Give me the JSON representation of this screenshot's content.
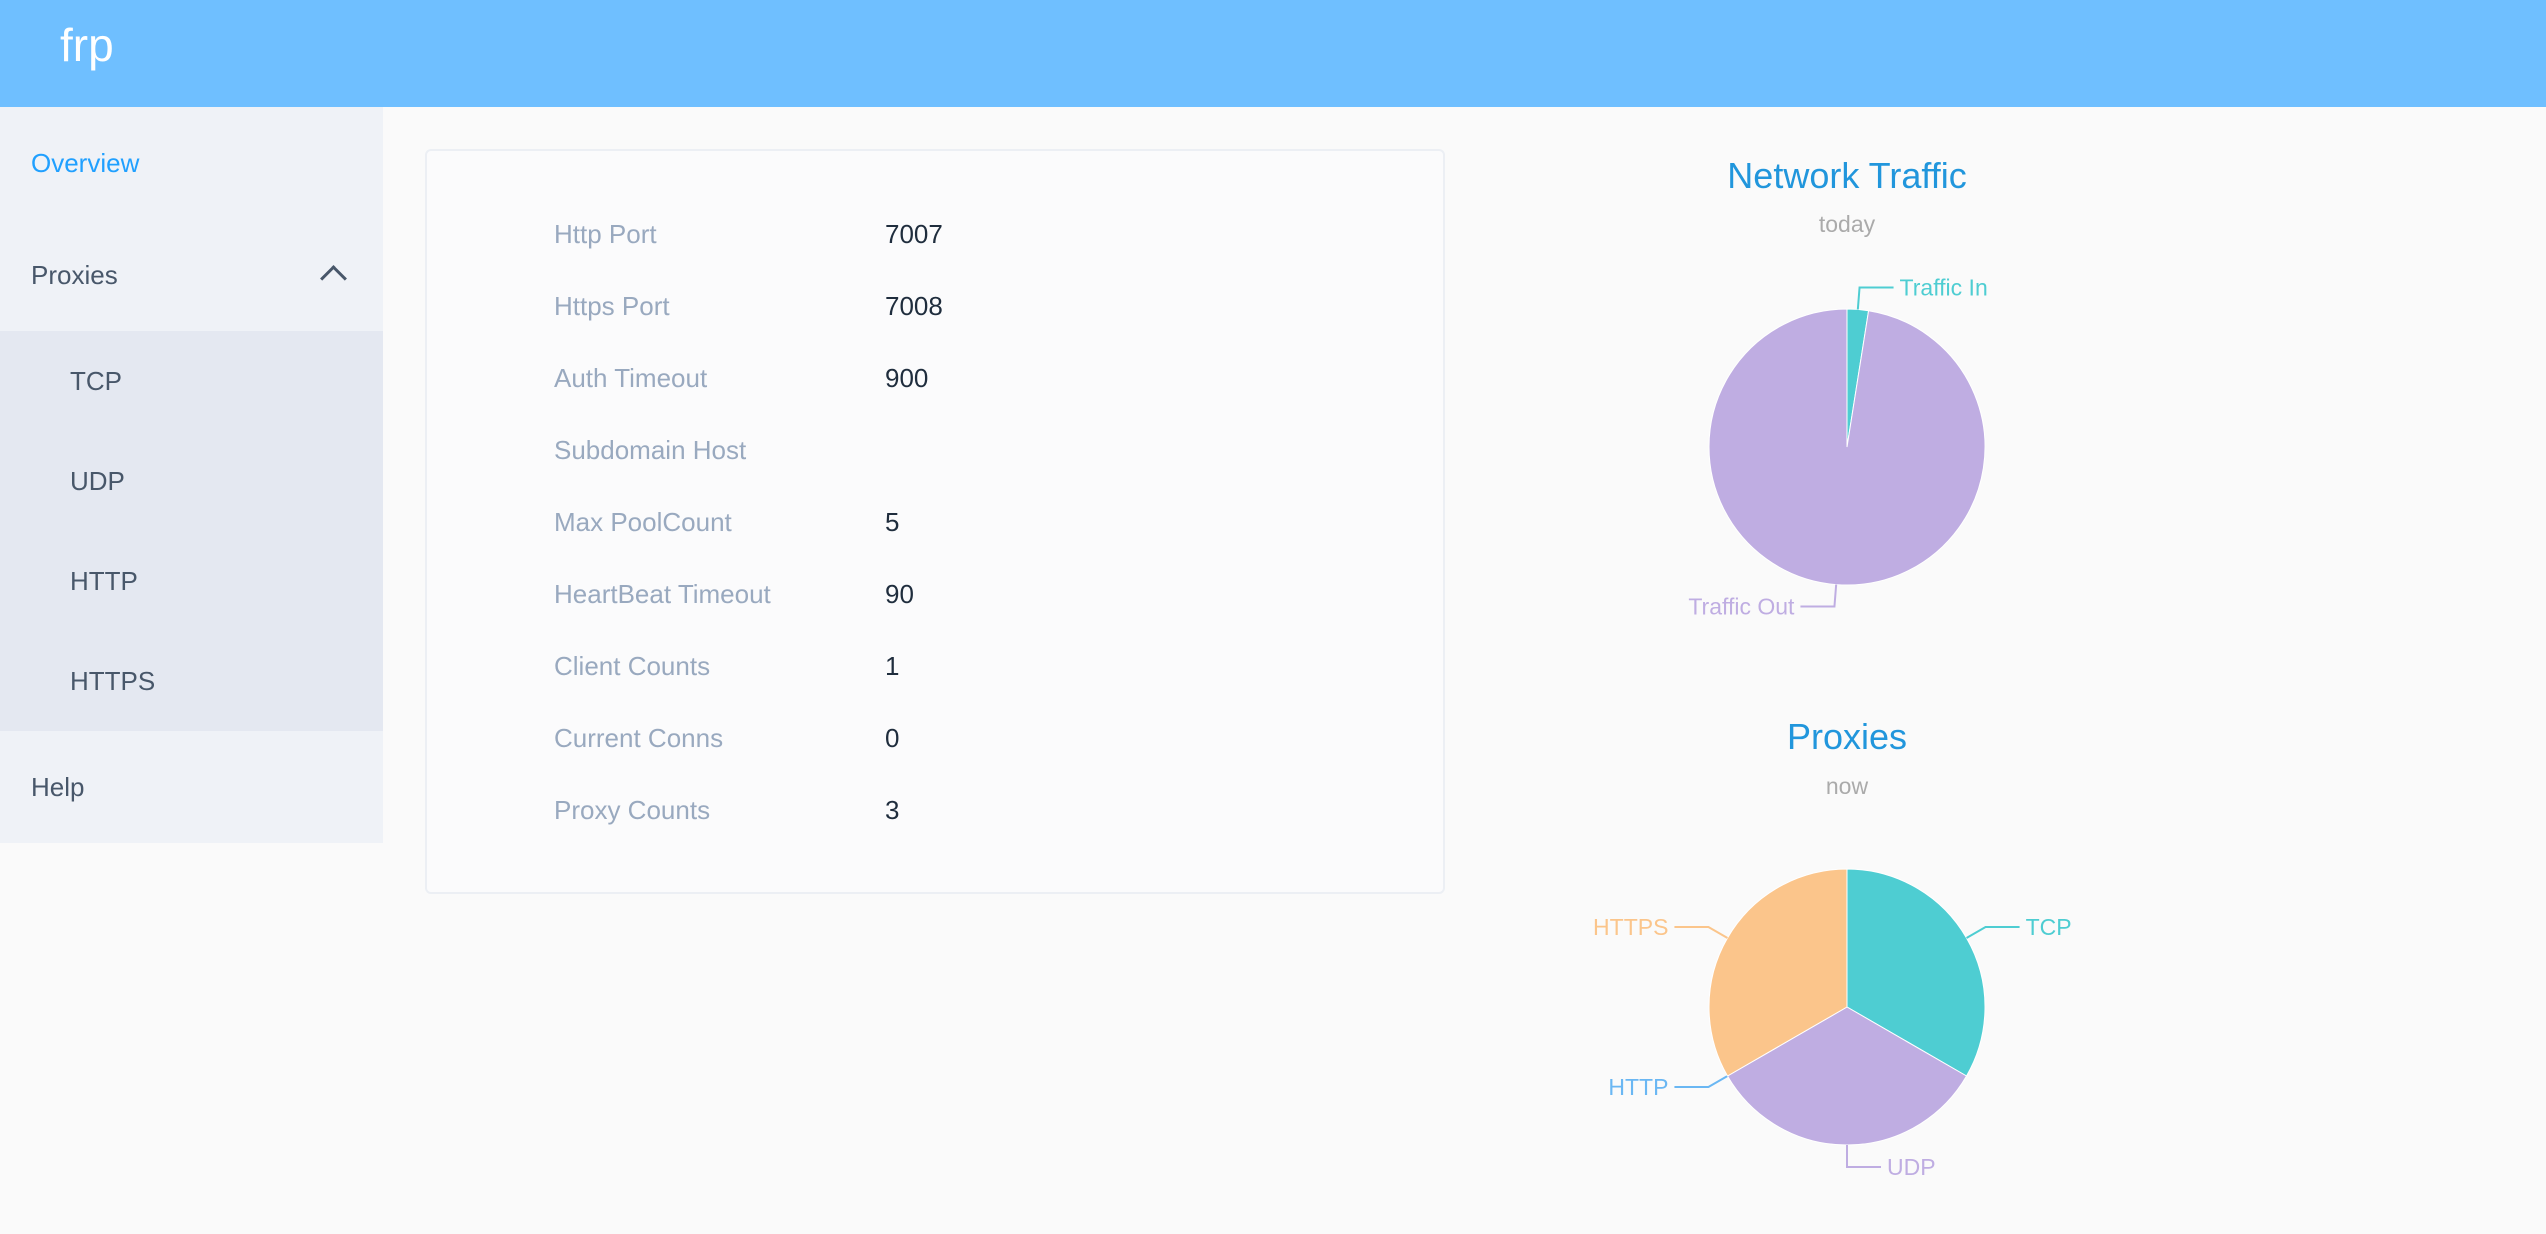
{
  "header": {
    "logo": "frp"
  },
  "sidebar": {
    "overview": "Overview",
    "proxies": "Proxies",
    "sub_items": [
      "TCP",
      "UDP",
      "HTTP",
      "HTTPS"
    ],
    "help": "Help"
  },
  "server_info": [
    {
      "label": "Http Port",
      "value": "7007"
    },
    {
      "label": "Https Port",
      "value": "7008"
    },
    {
      "label": "Auth Timeout",
      "value": "900"
    },
    {
      "label": "Subdomain Host",
      "value": ""
    },
    {
      "label": "Max PoolCount",
      "value": "5"
    },
    {
      "label": "HeartBeat Timeout",
      "value": "90"
    },
    {
      "label": "Client Counts",
      "value": "1"
    },
    {
      "label": "Current Conns",
      "value": "0"
    },
    {
      "label": "Proxy Counts",
      "value": "3"
    }
  ],
  "chart_data": [
    {
      "type": "pie",
      "title": "Network Traffic",
      "subtitle": "today",
      "slices": [
        {
          "name": "Traffic In",
          "value": 2.5,
          "color": "#4ecdd2"
        },
        {
          "name": "Traffic Out",
          "value": 97.5,
          "color": "#bfade2"
        }
      ]
    },
    {
      "type": "pie",
      "title": "Proxies",
      "subtitle": "now",
      "slices": [
        {
          "name": "TCP",
          "value": 1,
          "color": "#4ecdd2"
        },
        {
          "name": "UDP",
          "value": 1,
          "color": "#bfade2"
        },
        {
          "name": "HTTP",
          "value": 0,
          "color": "#6ab7f3"
        },
        {
          "name": "HTTPS",
          "value": 1,
          "color": "#fbc58b"
        }
      ]
    }
  ]
}
